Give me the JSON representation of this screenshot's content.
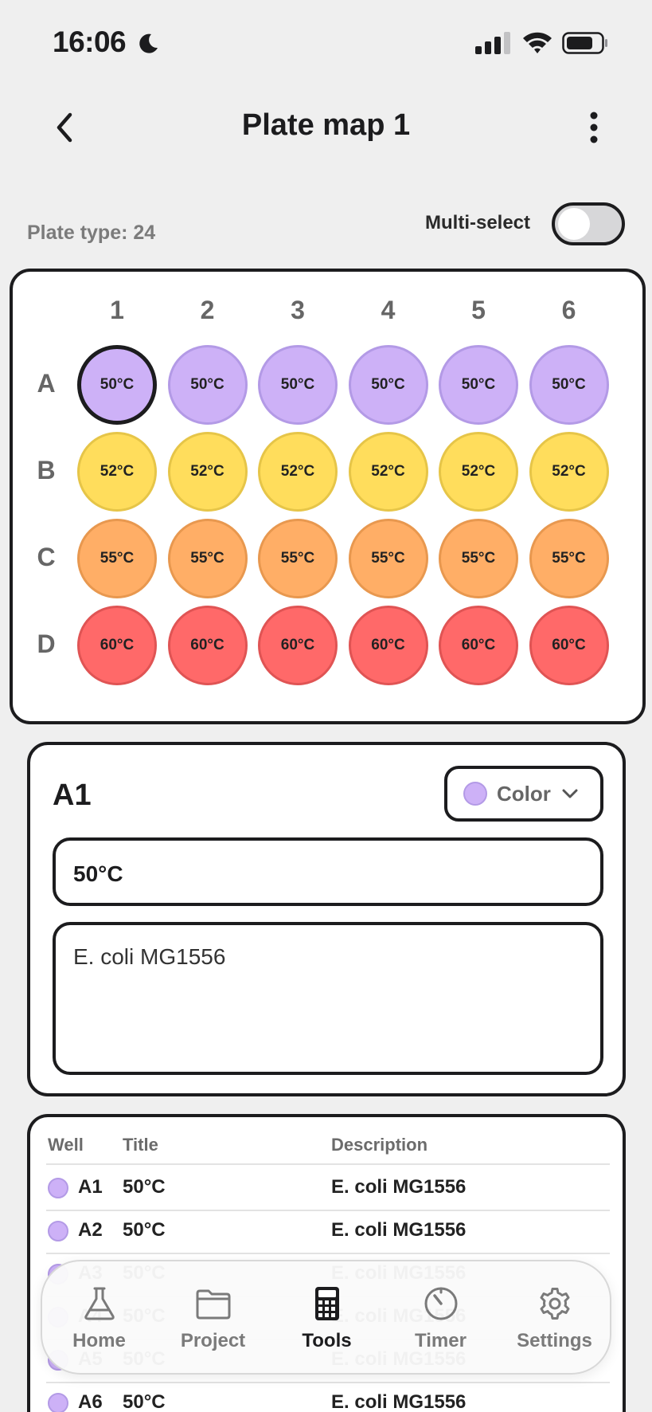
{
  "status": {
    "time": "16:06"
  },
  "header": {
    "title": "Plate map 1"
  },
  "controls": {
    "plate_type": "Plate type: 24",
    "multi_select_label": "Multi-select",
    "multi_select_on": false
  },
  "plate": {
    "columns": [
      "1",
      "2",
      "3",
      "4",
      "5",
      "6"
    ],
    "rows": [
      {
        "label": "A",
        "value": "50°C",
        "fill": "#cdb1f7",
        "border": "#b39ae6"
      },
      {
        "label": "B",
        "value": "52°C",
        "fill": "#ffdd5c",
        "border": "#e6c548"
      },
      {
        "label": "C",
        "value": "55°C",
        "fill": "#ffae66",
        "border": "#e8984f"
      },
      {
        "label": "D",
        "value": "60°C",
        "fill": "#ff6969",
        "border": "#e05454"
      }
    ],
    "selected_well": "A1"
  },
  "detail": {
    "well": "A1",
    "color_label": "Color",
    "title_value": "50°C",
    "description_value": "E. coli MG1556"
  },
  "table": {
    "headers": {
      "well": "Well",
      "title": "Title",
      "description": "Description"
    },
    "rows": [
      {
        "well": "A1",
        "title": "50°C",
        "description": "E. coli MG1556"
      },
      {
        "well": "A2",
        "title": "50°C",
        "description": "E. coli MG1556"
      },
      {
        "well": "A3",
        "title": "50°C",
        "description": "E. coli MG1556"
      },
      {
        "well": "A4",
        "title": "50°C",
        "description": "E. coli MG1556"
      },
      {
        "well": "A5",
        "title": "50°C",
        "description": "E. coli MG1556"
      },
      {
        "well": "A6",
        "title": "50°C",
        "description": "E. coli MG1556"
      }
    ]
  },
  "tabs": [
    {
      "label": "Home",
      "icon": "flask-icon",
      "active": false
    },
    {
      "label": "Project",
      "icon": "folder-icon",
      "active": false
    },
    {
      "label": "Tools",
      "icon": "calculator-icon",
      "active": true
    },
    {
      "label": "Timer",
      "icon": "timer-icon",
      "active": false
    },
    {
      "label": "Settings",
      "icon": "gear-icon",
      "active": false
    }
  ]
}
